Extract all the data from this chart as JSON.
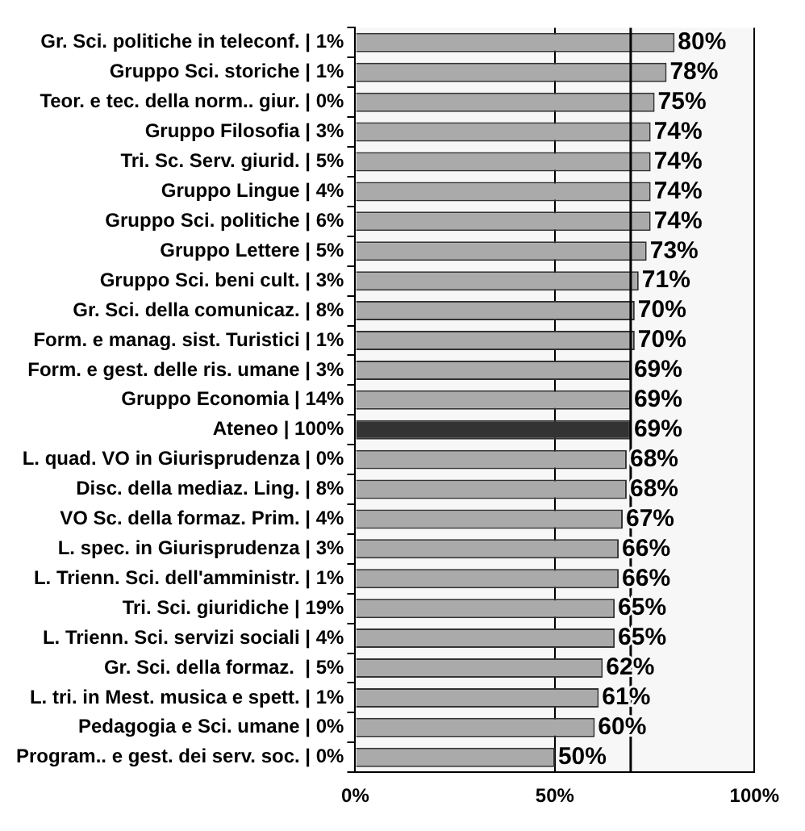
{
  "chart_data": {
    "type": "bar",
    "orientation": "horizontal",
    "categories": [
      "Gr. Sci. politiche in teleconf. | 1%",
      "Gruppo Sci. storiche | 1%",
      "Teor. e tec. della norm.. giur. | 0%",
      "Gruppo Filosofia | 3%",
      "Tri. Sc. Serv. giurid. | 5%",
      "Gruppo Lingue | 4%",
      "Gruppo Sci. politiche | 6%",
      "Gruppo Lettere | 5%",
      "Gruppo Sci. beni cult. | 3%",
      "Gr. Sci. della comunicaz. | 8%",
      "Form. e manag. sist. Turistici | 1%",
      "Form. e gest. delle ris. umane | 3%",
      "Gruppo Economia | 14%",
      "Ateneo | 100%",
      "L. quad. VO in Giurisprudenza | 0%",
      "Disc. della mediaz. Ling. | 8%",
      "VO Sc. della formaz. Prim. | 4%",
      "L. spec. in Giurisprudenza | 3%",
      "L. Trienn. Sci. dell'amministr. | 1%",
      "Tri. Sci. giuridiche | 19%",
      "L. Trienn. Sci. servizi sociali | 4%",
      "Gr. Sci. della formaz.  | 5%",
      "L. tri. in Mest. musica e spett. | 1%",
      "Pedagogia e Sci. umane | 0%",
      "Program.. e gest. dei serv. soc. | 0%"
    ],
    "values": [
      80,
      78,
      75,
      74,
      74,
      74,
      74,
      73,
      71,
      70,
      70,
      69,
      69,
      69,
      68,
      68,
      67,
      66,
      66,
      65,
      65,
      62,
      61,
      60,
      50
    ],
    "value_labels": [
      "80%",
      "78%",
      "75%",
      "74%",
      "74%",
      "74%",
      "74%",
      "73%",
      "71%",
      "70%",
      "70%",
      "69%",
      "69%",
      "69%",
      "68%",
      "68%",
      "67%",
      "66%",
      "66%",
      "65%",
      "65%",
      "62%",
      "61%",
      "60%",
      "50%"
    ],
    "colors": [
      "#aaaaaa",
      "#aaaaaa",
      "#aaaaaa",
      "#aaaaaa",
      "#aaaaaa",
      "#aaaaaa",
      "#aaaaaa",
      "#aaaaaa",
      "#aaaaaa",
      "#aaaaaa",
      "#aaaaaa",
      "#aaaaaa",
      "#aaaaaa",
      "#333333",
      "#aaaaaa",
      "#aaaaaa",
      "#aaaaaa",
      "#aaaaaa",
      "#aaaaaa",
      "#aaaaaa",
      "#aaaaaa",
      "#aaaaaa",
      "#aaaaaa",
      "#aaaaaa",
      "#aaaaaa"
    ],
    "xlim": [
      0,
      100
    ],
    "xticks": [
      {
        "value": 0,
        "label": "0%"
      },
      {
        "value": 50,
        "label": "50%"
      },
      {
        "value": 100,
        "label": "100%"
      }
    ],
    "ref_lines": [
      {
        "axis": "x",
        "value": 69,
        "color": "#000000"
      }
    ],
    "grid": "x",
    "legend": false
  }
}
